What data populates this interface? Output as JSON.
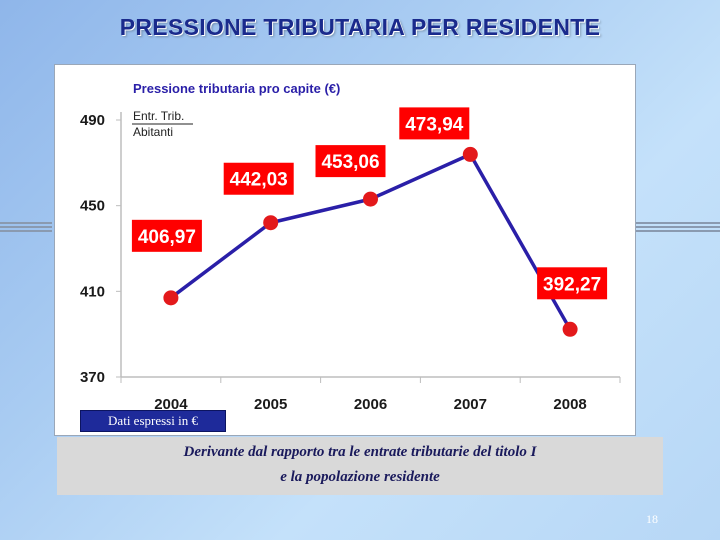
{
  "slide": {
    "title": "PRESSIONE TRIBUTARIA PER RESIDENTE",
    "units_note": "Dati espressi in €",
    "footnote_line1": "Derivante dal rapporto tra le entrate tributarie del titolo I",
    "footnote_line2": "e la popolazione residente",
    "page_number": "18"
  },
  "colors": {
    "line": "#2a1fa8",
    "marker": "#e3191b",
    "label_bg": "#ff0000",
    "label_text": "#ffffff",
    "title": "#1a2a8c"
  },
  "chart_data": {
    "type": "line",
    "title": "Pressione tributaria pro capite  (€)",
    "legend": [
      "Entr. Trib.",
      "Abitanti"
    ],
    "categories": [
      "2004",
      "2005",
      "2006",
      "2007",
      "2008"
    ],
    "series": [
      {
        "name": "Pressione tributaria pro capite",
        "values": [
          406.97,
          442.03,
          453.06,
          473.94,
          392.27
        ],
        "labels": [
          "406,97",
          "442,03",
          "453,06",
          "473,94",
          "392,27"
        ]
      }
    ],
    "y_ticks": [
      "370",
      "410",
      "450",
      "490"
    ],
    "ylim": [
      370,
      490
    ],
    "grid": false
  }
}
